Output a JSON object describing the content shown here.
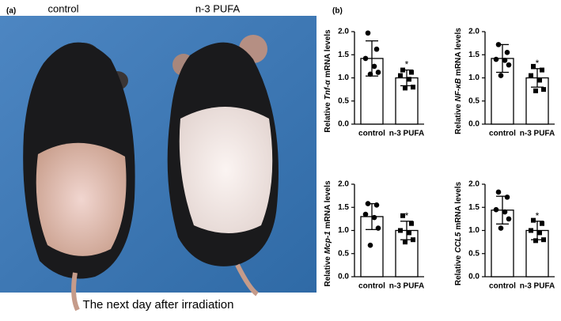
{
  "panel_a": {
    "label": "(a)",
    "labels": [
      "control",
      "n-3 PUFA"
    ],
    "caption": "The next day after irradiation"
  },
  "panel_b": {
    "label": "(b)"
  },
  "chart_data": [
    {
      "type": "bar",
      "ylabel": [
        "Relative",
        "Tnf-α",
        "mRNA levels"
      ],
      "categories": [
        "control",
        "n-3 PUFA"
      ],
      "values": [
        1.42,
        1.0
      ],
      "errors": [
        0.38,
        0.17
      ],
      "significance": [
        null,
        "*"
      ],
      "points": [
        [
          1.97,
          1.62,
          1.42,
          1.25,
          1.12,
          1.08
        ],
        [
          1.17,
          1.12,
          1.05,
          0.97,
          0.8,
          0.78
        ]
      ],
      "ylim": [
        0,
        2
      ],
      "yticks": [
        {
          "value": 0,
          "label": "0.0"
        },
        0.5,
        {
          "value": 1,
          "label": "1.0"
        },
        1.5,
        {
          "value": 2,
          "label": "2.0"
        }
      ]
    },
    {
      "type": "bar",
      "ylabel": [
        "Relative",
        "NF-κB",
        "mRNA levels"
      ],
      "categories": [
        "control",
        "n-3 PUFA"
      ],
      "values": [
        1.42,
        1.0
      ],
      "errors": [
        0.3,
        0.2
      ],
      "significance": [
        null,
        "*"
      ],
      "points": [
        [
          1.72,
          1.55,
          1.4,
          1.38,
          1.28,
          1.05
        ],
        [
          1.25,
          1.17,
          1.05,
          0.95,
          0.75,
          0.72
        ]
      ],
      "ylim": [
        0,
        2
      ],
      "yticks": [
        {
          "value": 0,
          "label": "0.0"
        },
        0.5,
        {
          "value": 1,
          "label": "1.0"
        },
        1.5,
        {
          "value": 2,
          "label": "2.0"
        }
      ]
    },
    {
      "type": "bar",
      "ylabel": [
        "Relative",
        "Mcp-1",
        "mRNA levels"
      ],
      "categories": [
        "control",
        "n-3 PUFA"
      ],
      "values": [
        1.3,
        1.0
      ],
      "errors": [
        0.28,
        0.2
      ],
      "significance": [
        null,
        "*"
      ],
      "points": [
        [
          1.58,
          1.55,
          1.35,
          1.28,
          1.05,
          0.68
        ],
        [
          1.32,
          1.15,
          1.0,
          0.95,
          0.8,
          0.75
        ]
      ],
      "ylim": [
        0,
        2
      ],
      "yticks": [
        {
          "value": 0,
          "label": "0.0"
        },
        0.5,
        {
          "value": 1,
          "label": "1.0"
        },
        1.5,
        {
          "value": 2,
          "label": "2.0"
        }
      ]
    },
    {
      "type": "bar",
      "ylabel": [
        "Relative",
        "CCL5",
        "mRNA levels"
      ],
      "categories": [
        "control",
        "n-3 PUFA"
      ],
      "values": [
        1.44,
        1.0
      ],
      "errors": [
        0.3,
        0.2
      ],
      "significance": [
        null,
        "*"
      ],
      "points": [
        [
          1.83,
          1.72,
          1.45,
          1.4,
          1.25,
          1.05
        ],
        [
          1.22,
          1.15,
          1.0,
          0.95,
          0.8,
          0.78
        ]
      ],
      "ylim": [
        0,
        2
      ],
      "yticks": [
        {
          "value": 0,
          "label": "0.0"
        },
        0.5,
        {
          "value": 1,
          "label": "1.0"
        },
        1.5,
        {
          "value": 2,
          "label": "2.0"
        }
      ]
    }
  ]
}
